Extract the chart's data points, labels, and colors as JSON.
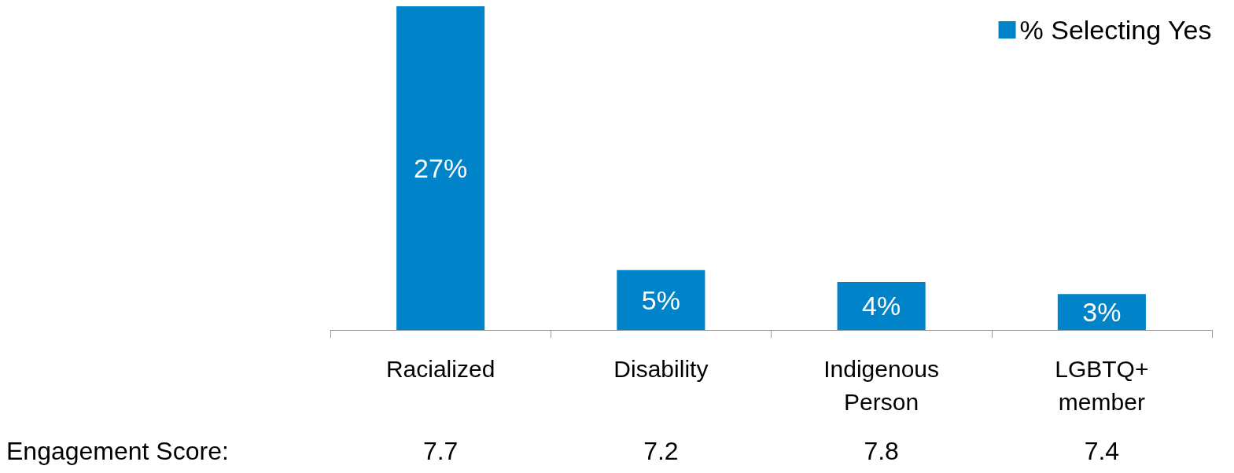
{
  "chart_data": {
    "type": "bar",
    "categories": [
      "Racialized",
      "Disability",
      "Indigenous\nPerson",
      "LGBTQ+\nmember"
    ],
    "series": [
      {
        "name": "% Selecting Yes",
        "color": "#0083c9",
        "values": [
          27,
          5,
          4,
          3
        ],
        "value_labels": [
          "27%",
          "5%",
          "4%",
          "3%"
        ]
      }
    ],
    "legend": "top right",
    "annotations": [
      "Engagement Score:",
      "7.7",
      "7.2",
      "7.8",
      "7.4"
    ]
  }
}
